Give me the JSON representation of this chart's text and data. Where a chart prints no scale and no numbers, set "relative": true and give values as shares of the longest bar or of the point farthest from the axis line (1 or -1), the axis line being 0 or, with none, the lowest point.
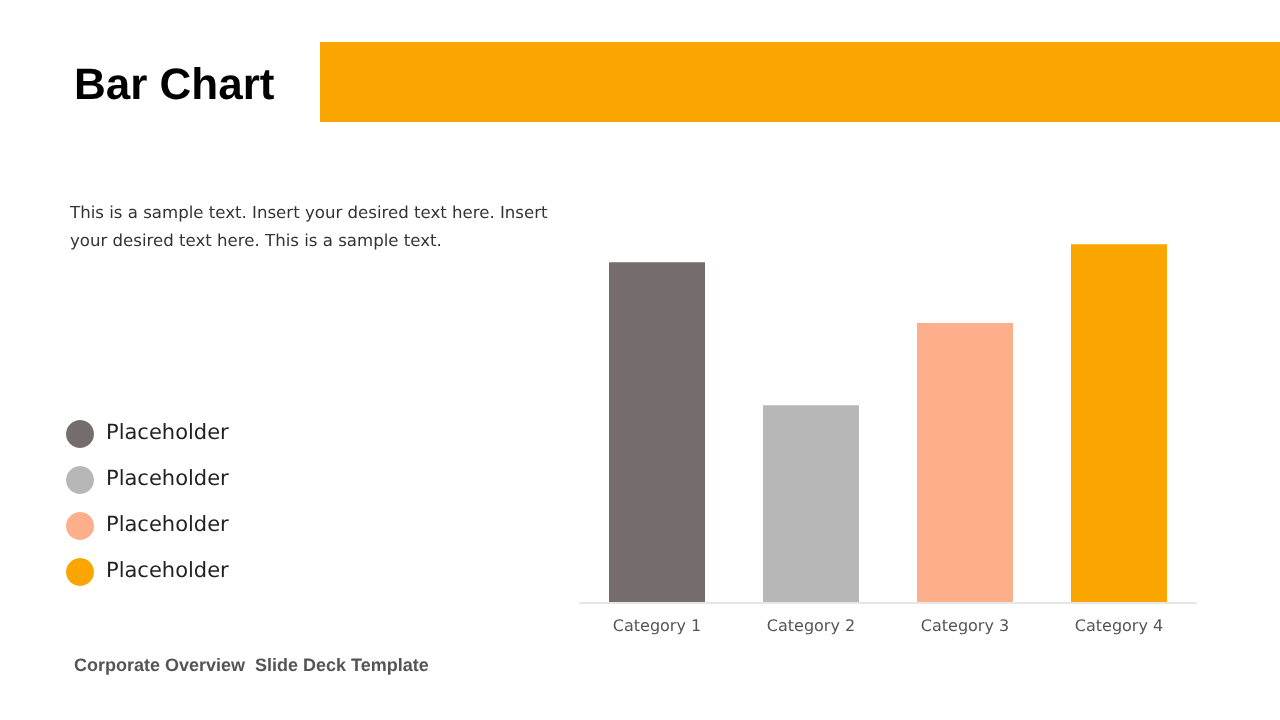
{
  "chart_data": {
    "type": "bar",
    "title": "Bar Chart",
    "subtitle": "This is a sample text. Insert your desired text here. Insert your desired text here. This is a sample text.",
    "annotations": [
      "Corporate Overview  Slide Deck Template"
    ],
    "categories": [
      "Category 1",
      "Category 2",
      "Category 3",
      "Category 4"
    ],
    "series": [
      {
        "name": "Placeholder",
        "color": "#756d6b",
        "values": [
          0.95,
          null,
          null,
          null
        ]
      },
      {
        "name": "Placeholder",
        "color": "#b8b7b8",
        "values": [
          null,
          0.55,
          null,
          null
        ]
      },
      {
        "name": "Placeholder",
        "color": "#fdae8b",
        "values": [
          null,
          null,
          0.78,
          null
        ]
      },
      {
        "name": "Placeholder",
        "color": "#fba500",
        "values": [
          null,
          null,
          null,
          1
        ]
      }
    ],
    "stacked": true,
    "relative": true,
    "legend": "left"
  }
}
